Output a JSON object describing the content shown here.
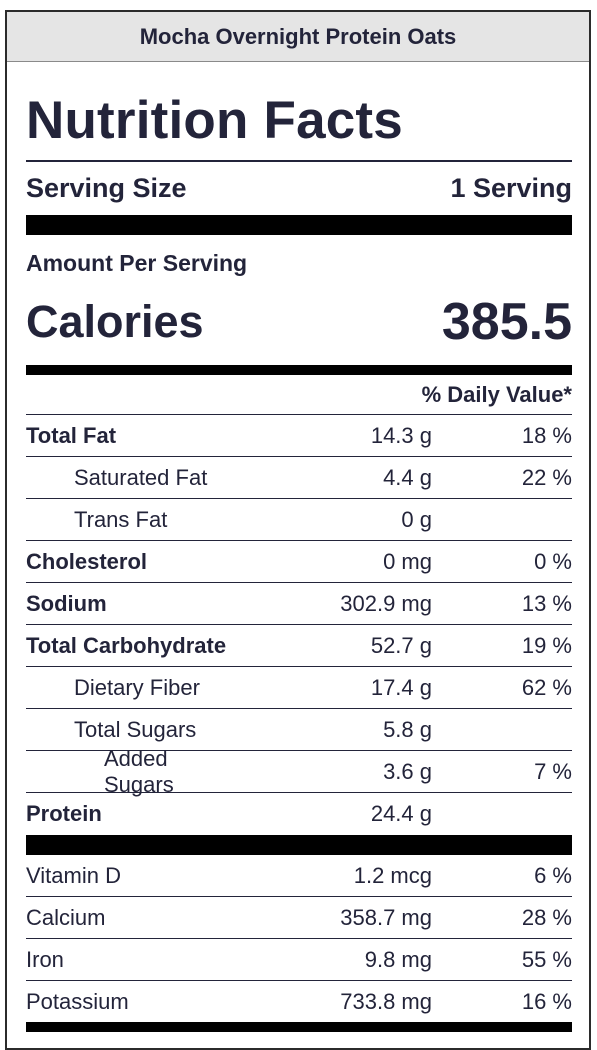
{
  "recipe_title": "Mocha Overnight Protein Oats",
  "heading": "Nutrition Facts",
  "serving": {
    "label": "Serving Size",
    "value": "1 Serving"
  },
  "amount_per_serving": "Amount Per Serving",
  "calories": {
    "label": "Calories",
    "value": "385.5"
  },
  "daily_value_header": "% Daily Value*",
  "nutrients": [
    {
      "name": "Total Fat",
      "amount": "14.3 g",
      "dv": "18 %",
      "style": "bold"
    },
    {
      "name": "Saturated Fat",
      "amount": "4.4 g",
      "dv": "22 %",
      "style": "indent1"
    },
    {
      "name": "Trans Fat",
      "amount": "0 g",
      "dv": "",
      "style": "indent1"
    },
    {
      "name": "Cholesterol",
      "amount": "0 mg",
      "dv": "0 %",
      "style": "bold"
    },
    {
      "name": "Sodium",
      "amount": "302.9 mg",
      "dv": "13 %",
      "style": "bold"
    },
    {
      "name": "Total Carbohydrate",
      "amount": "52.7 g",
      "dv": "19 %",
      "style": "bold"
    },
    {
      "name": "Dietary Fiber",
      "amount": "17.4 g",
      "dv": "62 %",
      "style": "indent1"
    },
    {
      "name": "Total Sugars",
      "amount": "5.8 g",
      "dv": "",
      "style": "indent1"
    },
    {
      "name": "Added Sugars",
      "amount": "3.6 g",
      "dv": "7 %",
      "style": "indent2"
    },
    {
      "name": "Protein",
      "amount": "24.4 g",
      "dv": "",
      "style": "bold"
    }
  ],
  "vitamins": [
    {
      "name": "Vitamin D",
      "amount": "1.2 mcg",
      "dv": "6 %"
    },
    {
      "name": "Calcium",
      "amount": "358.7 mg",
      "dv": "28 %"
    },
    {
      "name": "Iron",
      "amount": "9.8 mg",
      "dv": "55 %"
    },
    {
      "name": "Potassium",
      "amount": "733.8 mg",
      "dv": "16 %"
    }
  ]
}
